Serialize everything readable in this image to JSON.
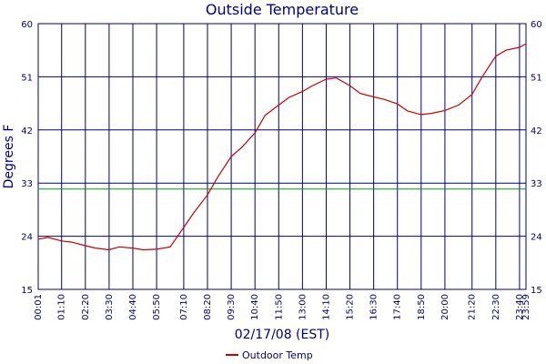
{
  "chart_data": {
    "type": "line",
    "title": "Outside Temperature",
    "xlabel": "02/17/08 (EST)",
    "ylabel": "Degrees F",
    "ylim": [
      15,
      60
    ],
    "yticks": [
      15,
      24,
      33,
      42,
      51,
      60
    ],
    "xlim": [
      "00:01",
      "23:59"
    ],
    "xtick_labels": [
      "00:01",
      "01:10",
      "02:20",
      "03:30",
      "04:40",
      "05:50",
      "07:10",
      "08:20",
      "09:30",
      "10:40",
      "11:50",
      "13:00",
      "14:10",
      "15:20",
      "16:30",
      "17:40",
      "18:50",
      "20:00",
      "21:20",
      "22:30",
      "23:40",
      "23:59"
    ],
    "reference_line": {
      "y": 32,
      "color": "#00a000"
    },
    "grid": true,
    "legend_position": "bottom-center",
    "series": [
      {
        "name": "Outdoor Temp",
        "color": "#cc0000",
        "x": [
          "00:01",
          "00:30",
          "01:10",
          "01:40",
          "02:20",
          "02:50",
          "03:30",
          "04:00",
          "04:40",
          "05:10",
          "05:50",
          "06:30",
          "07:10",
          "07:40",
          "08:20",
          "08:50",
          "09:30",
          "10:00",
          "10:40",
          "11:10",
          "11:50",
          "12:20",
          "13:00",
          "13:30",
          "14:10",
          "14:40",
          "15:20",
          "15:50",
          "16:30",
          "17:00",
          "17:40",
          "18:10",
          "18:50",
          "19:20",
          "20:00",
          "20:40",
          "21:20",
          "21:50",
          "22:30",
          "23:00",
          "23:40",
          "23:59"
        ],
        "values": [
          23.5,
          23.8,
          23.2,
          23.0,
          22.4,
          22.0,
          21.7,
          22.2,
          22.0,
          21.7,
          21.8,
          22.2,
          25.5,
          28.0,
          31.0,
          34.0,
          37.5,
          39.0,
          41.5,
          44.5,
          46.2,
          47.5,
          48.5,
          49.5,
          50.6,
          50.8,
          49.5,
          48.2,
          47.6,
          47.2,
          46.4,
          45.2,
          44.6,
          44.8,
          45.3,
          46.2,
          48.0,
          51.0,
          54.5,
          55.5,
          56.0,
          56.6
        ]
      }
    ]
  }
}
